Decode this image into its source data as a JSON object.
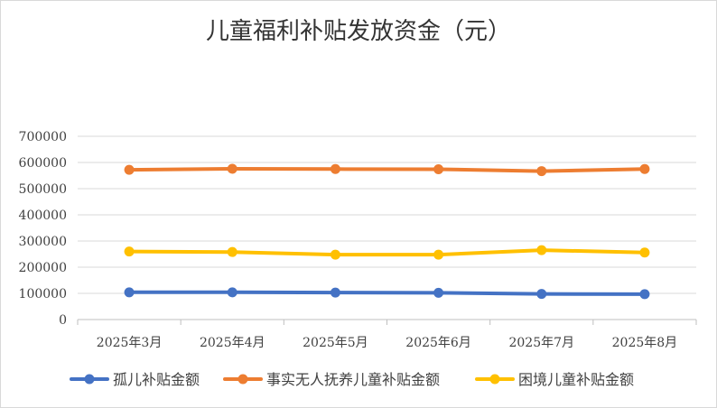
{
  "chart_data": {
    "type": "line",
    "title": "儿童福利补贴发放资金（元）",
    "xlabel": "",
    "ylabel": "",
    "categories": [
      "2025年3月",
      "2025年4月",
      "2025年5月",
      "2025年6月",
      "2025年7月",
      "2025年8月"
    ],
    "ylim": [
      0,
      700000
    ],
    "yticks": [
      "0",
      "100000",
      "200000",
      "300000",
      "400000",
      "500000",
      "600000",
      "700000"
    ],
    "grid": true,
    "legend_position": "bottom",
    "series": [
      {
        "name": "孤儿补贴金额",
        "color": "#4472c4",
        "values": [
          104000,
          104000,
          103000,
          102000,
          98000,
          97000
        ]
      },
      {
        "name": "事实无人抚养儿童补贴金额",
        "color": "#ed7d31",
        "values": [
          572000,
          576000,
          575000,
          574000,
          567000,
          575000
        ]
      },
      {
        "name": "困境儿童补贴金额",
        "color": "#ffc000",
        "values": [
          260000,
          258000,
          248000,
          248000,
          265000,
          256000
        ]
      }
    ]
  }
}
